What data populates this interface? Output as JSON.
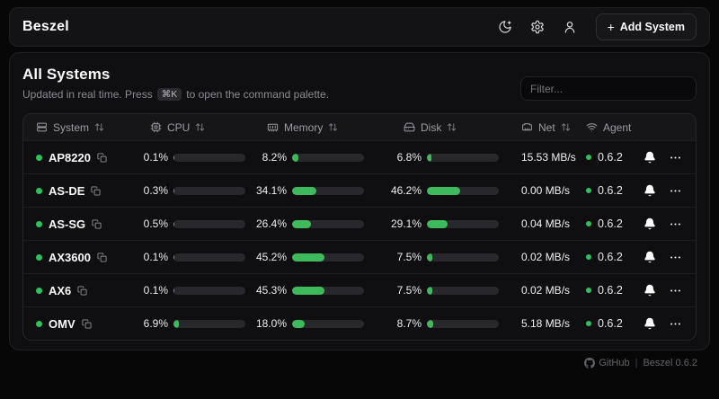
{
  "topbar": {
    "brand": "Beszel",
    "add_system": {
      "icon": "+",
      "label": "Add System"
    },
    "icons": [
      "moon-star-icon",
      "gear-icon",
      "user-icon"
    ]
  },
  "main": {
    "title": "All Systems",
    "subtitle_prefix": "Updated in real time. Press",
    "kbd": "⌘K",
    "subtitle_suffix": "to open the command palette.",
    "filter_placeholder": "Filter..."
  },
  "table": {
    "columns": [
      {
        "label": "System",
        "icon": "server-icon",
        "sortable": true
      },
      {
        "label": "CPU",
        "icon": "cpu-icon",
        "sortable": true
      },
      {
        "label": "Memory",
        "icon": "memory-icon",
        "sortable": true
      },
      {
        "label": "Disk",
        "icon": "hard-drive-icon",
        "sortable": true
      },
      {
        "label": "Net",
        "icon": "ethernet-icon",
        "sortable": true
      },
      {
        "label": "Agent",
        "icon": "wifi-icon",
        "sortable": false
      }
    ],
    "rows": [
      {
        "name": "AP8220",
        "status": "up",
        "cpu": "0.1%",
        "cpu_pct": 0.1,
        "memory": "8.2%",
        "memory_pct": 8.2,
        "disk": "6.8%",
        "disk_pct": 6.8,
        "net": "15.53 MB/s",
        "agent": "0.6.2"
      },
      {
        "name": "AS-DE",
        "status": "up",
        "cpu": "0.3%",
        "cpu_pct": 0.3,
        "memory": "34.1%",
        "memory_pct": 34.1,
        "disk": "46.2%",
        "disk_pct": 46.2,
        "net": "0.00 MB/s",
        "agent": "0.6.2"
      },
      {
        "name": "AS-SG",
        "status": "up",
        "cpu": "0.5%",
        "cpu_pct": 0.5,
        "memory": "26.4%",
        "memory_pct": 26.4,
        "disk": "29.1%",
        "disk_pct": 29.1,
        "net": "0.04 MB/s",
        "agent": "0.6.2"
      },
      {
        "name": "AX3600",
        "status": "up",
        "cpu": "0.1%",
        "cpu_pct": 0.1,
        "memory": "45.2%",
        "memory_pct": 45.2,
        "disk": "7.5%",
        "disk_pct": 7.5,
        "net": "0.02 MB/s",
        "agent": "0.6.2"
      },
      {
        "name": "AX6",
        "status": "up",
        "cpu": "0.1%",
        "cpu_pct": 0.1,
        "memory": "45.3%",
        "memory_pct": 45.3,
        "disk": "7.5%",
        "disk_pct": 7.5,
        "net": "0.02 MB/s",
        "agent": "0.6.2"
      },
      {
        "name": "OMV",
        "status": "up",
        "cpu": "6.9%",
        "cpu_pct": 6.9,
        "memory": "18.0%",
        "memory_pct": 18.0,
        "disk": "8.7%",
        "disk_pct": 8.7,
        "net": "5.18 MB/s",
        "agent": "0.6.2"
      }
    ]
  },
  "footer": {
    "github_label": "GitHub",
    "separator": "|",
    "version": "Beszel 0.6.2"
  },
  "colors": {
    "accent_green": "#3eb95c",
    "status_green": "#2fc15a",
    "bar_track": "#28282c",
    "card_bg": "#0f0f11"
  }
}
